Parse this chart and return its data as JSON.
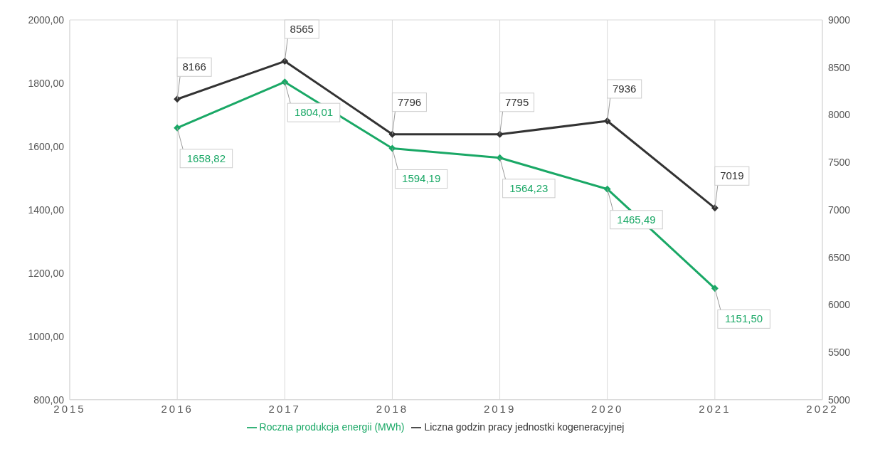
{
  "chart_data": {
    "type": "line",
    "x": [
      2016,
      2017,
      2018,
      2019,
      2020,
      2021
    ],
    "series": [
      {
        "name": "Roczna produkcja energii (MWh)",
        "color": "#1aa866",
        "values": [
          1658.82,
          1804.01,
          1594.19,
          1564.23,
          1465.49,
          1151.5
        ],
        "value_labels": [
          "1658,82",
          "1804,01",
          "1594,19",
          "1564,23",
          "1465,49",
          "1151,50"
        ]
      },
      {
        "name": "Liczna godzin pracy jednostki kogeneracyjnej",
        "color": "#333333",
        "axis": "y2",
        "values": [
          8166,
          8565,
          7796,
          7795,
          7936,
          7019
        ],
        "value_labels": [
          "8166",
          "8565",
          "7796",
          "7795",
          "7936",
          "7019"
        ]
      }
    ],
    "xlim": [
      2015,
      2022
    ],
    "xticks": [
      2015,
      2016,
      2017,
      2018,
      2019,
      2020,
      2021,
      2022
    ],
    "ylim": [
      800,
      2000
    ],
    "yticks": [
      {
        "value": 800,
        "label": "800,00"
      },
      {
        "value": 1000,
        "label": "1000,00"
      },
      {
        "value": 1200,
        "label": "1200,00"
      },
      {
        "value": 1400,
        "label": "1400,00"
      },
      {
        "value": 1600,
        "label": "1600,00"
      },
      {
        "value": 1800,
        "label": "1800,00"
      },
      {
        "value": 2000,
        "label": "2000,00"
      }
    ],
    "y2lim": [
      5000,
      9000
    ],
    "y2ticks": [
      5000,
      5500,
      6000,
      6500,
      7000,
      7500,
      8000,
      8500,
      9000
    ],
    "grid": true,
    "legend": "bottom",
    "marker": "diamond",
    "line_style": "solid"
  }
}
